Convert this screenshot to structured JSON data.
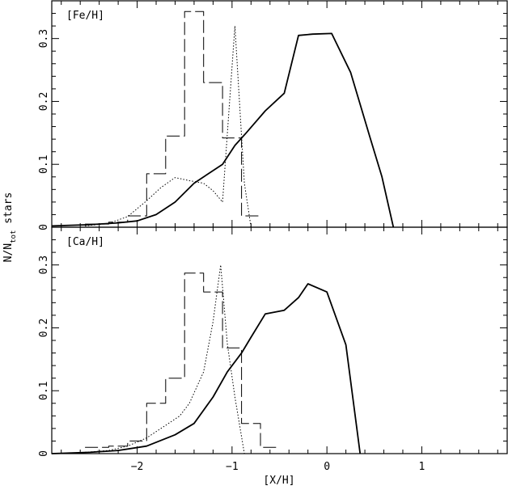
{
  "chart_data": [
    {
      "type": "line",
      "panel_label": "[Fe/H]",
      "xlim": [
        -2.9,
        1.9
      ],
      "ylim": [
        0,
        0.36
      ],
      "x_ticks": [
        -2,
        -1,
        0,
        1
      ],
      "y_ticks": [
        0,
        0.1,
        0.2,
        0.3
      ],
      "y_tick_labels": [
        "0",
        "0.1",
        "0.2",
        "0.3"
      ],
      "series": [
        {
          "style": "dashed-histogram",
          "bin_edges": [
            -2.55,
            -2.3,
            -2.1,
            -1.9,
            -1.7,
            -1.5,
            -1.3,
            -1.1,
            -0.9,
            -0.7
          ],
          "values": [
            0.005,
            0.008,
            0.018,
            0.085,
            0.145,
            0.343,
            0.23,
            0.142,
            0.018
          ]
        },
        {
          "style": "dotted",
          "x": [
            -2.55,
            -2.3,
            -2.1,
            -1.9,
            -1.75,
            -1.6,
            -1.45,
            -1.3,
            -1.2,
            -1.1,
            -0.97,
            -0.87,
            -0.8
          ],
          "y": [
            0.002,
            0.006,
            0.017,
            0.042,
            0.063,
            0.079,
            0.074,
            0.07,
            0.058,
            0.04,
            0.32,
            0.07,
            0.0
          ]
        },
        {
          "style": "solid",
          "x": [
            -2.9,
            -2.5,
            -2.2,
            -2.0,
            -1.8,
            -1.6,
            -1.4,
            -1.1,
            -0.97,
            -0.85,
            -0.65,
            -0.45,
            -0.3,
            -0.15,
            0.05,
            0.25,
            0.45,
            0.58,
            0.7
          ],
          "y": [
            0.002,
            0.004,
            0.007,
            0.01,
            0.02,
            0.04,
            0.07,
            0.1,
            0.13,
            0.15,
            0.185,
            0.213,
            0.305,
            0.307,
            0.308,
            0.246,
            0.145,
            0.08,
            0.0
          ]
        }
      ]
    },
    {
      "type": "line",
      "panel_label": "[Ca/H]",
      "xlim": [
        -2.9,
        1.9
      ],
      "ylim": [
        0,
        0.36
      ],
      "x_ticks": [
        -2,
        -1,
        0,
        1
      ],
      "y_ticks": [
        0,
        0.1,
        0.2,
        0.3
      ],
      "y_tick_labels": [
        "0",
        "0.1",
        "0.2",
        "0.3"
      ],
      "series": [
        {
          "style": "dashed-histogram",
          "bin_edges": [
            -2.55,
            -2.3,
            -2.1,
            -1.9,
            -1.7,
            -1.5,
            -1.3,
            -1.1,
            -0.9,
            -0.7,
            -0.5
          ],
          "values": [
            0.01,
            0.012,
            0.02,
            0.08,
            0.12,
            0.287,
            0.257,
            0.168,
            0.048,
            0.01
          ]
        },
        {
          "style": "dotted",
          "x": [
            -2.55,
            -2.3,
            -2.1,
            -1.9,
            -1.7,
            -1.55,
            -1.45,
            -1.3,
            -1.2,
            -1.12,
            -1.05,
            -0.97,
            -0.87,
            -0.75
          ],
          "y": [
            0.002,
            0.005,
            0.012,
            0.025,
            0.045,
            0.06,
            0.08,
            0.13,
            0.21,
            0.3,
            0.175,
            0.09,
            0.0,
            0.0
          ]
        },
        {
          "style": "solid",
          "x": [
            -2.9,
            -2.5,
            -2.2,
            -1.9,
            -1.6,
            -1.4,
            -1.2,
            -1.05,
            -0.9,
            -0.8,
            -0.65,
            -0.45,
            -0.3,
            -0.2,
            0.0,
            0.2,
            0.35
          ],
          "y": [
            0.0,
            0.002,
            0.005,
            0.012,
            0.03,
            0.048,
            0.09,
            0.13,
            0.16,
            0.185,
            0.222,
            0.228,
            0.248,
            0.27,
            0.257,
            0.173,
            0.0
          ]
        }
      ]
    }
  ],
  "x_axis_label": "[X/H]",
  "y_axis_label_main": "N/N",
  "y_axis_label_sub": "tot",
  "y_axis_label_tail": " stars"
}
